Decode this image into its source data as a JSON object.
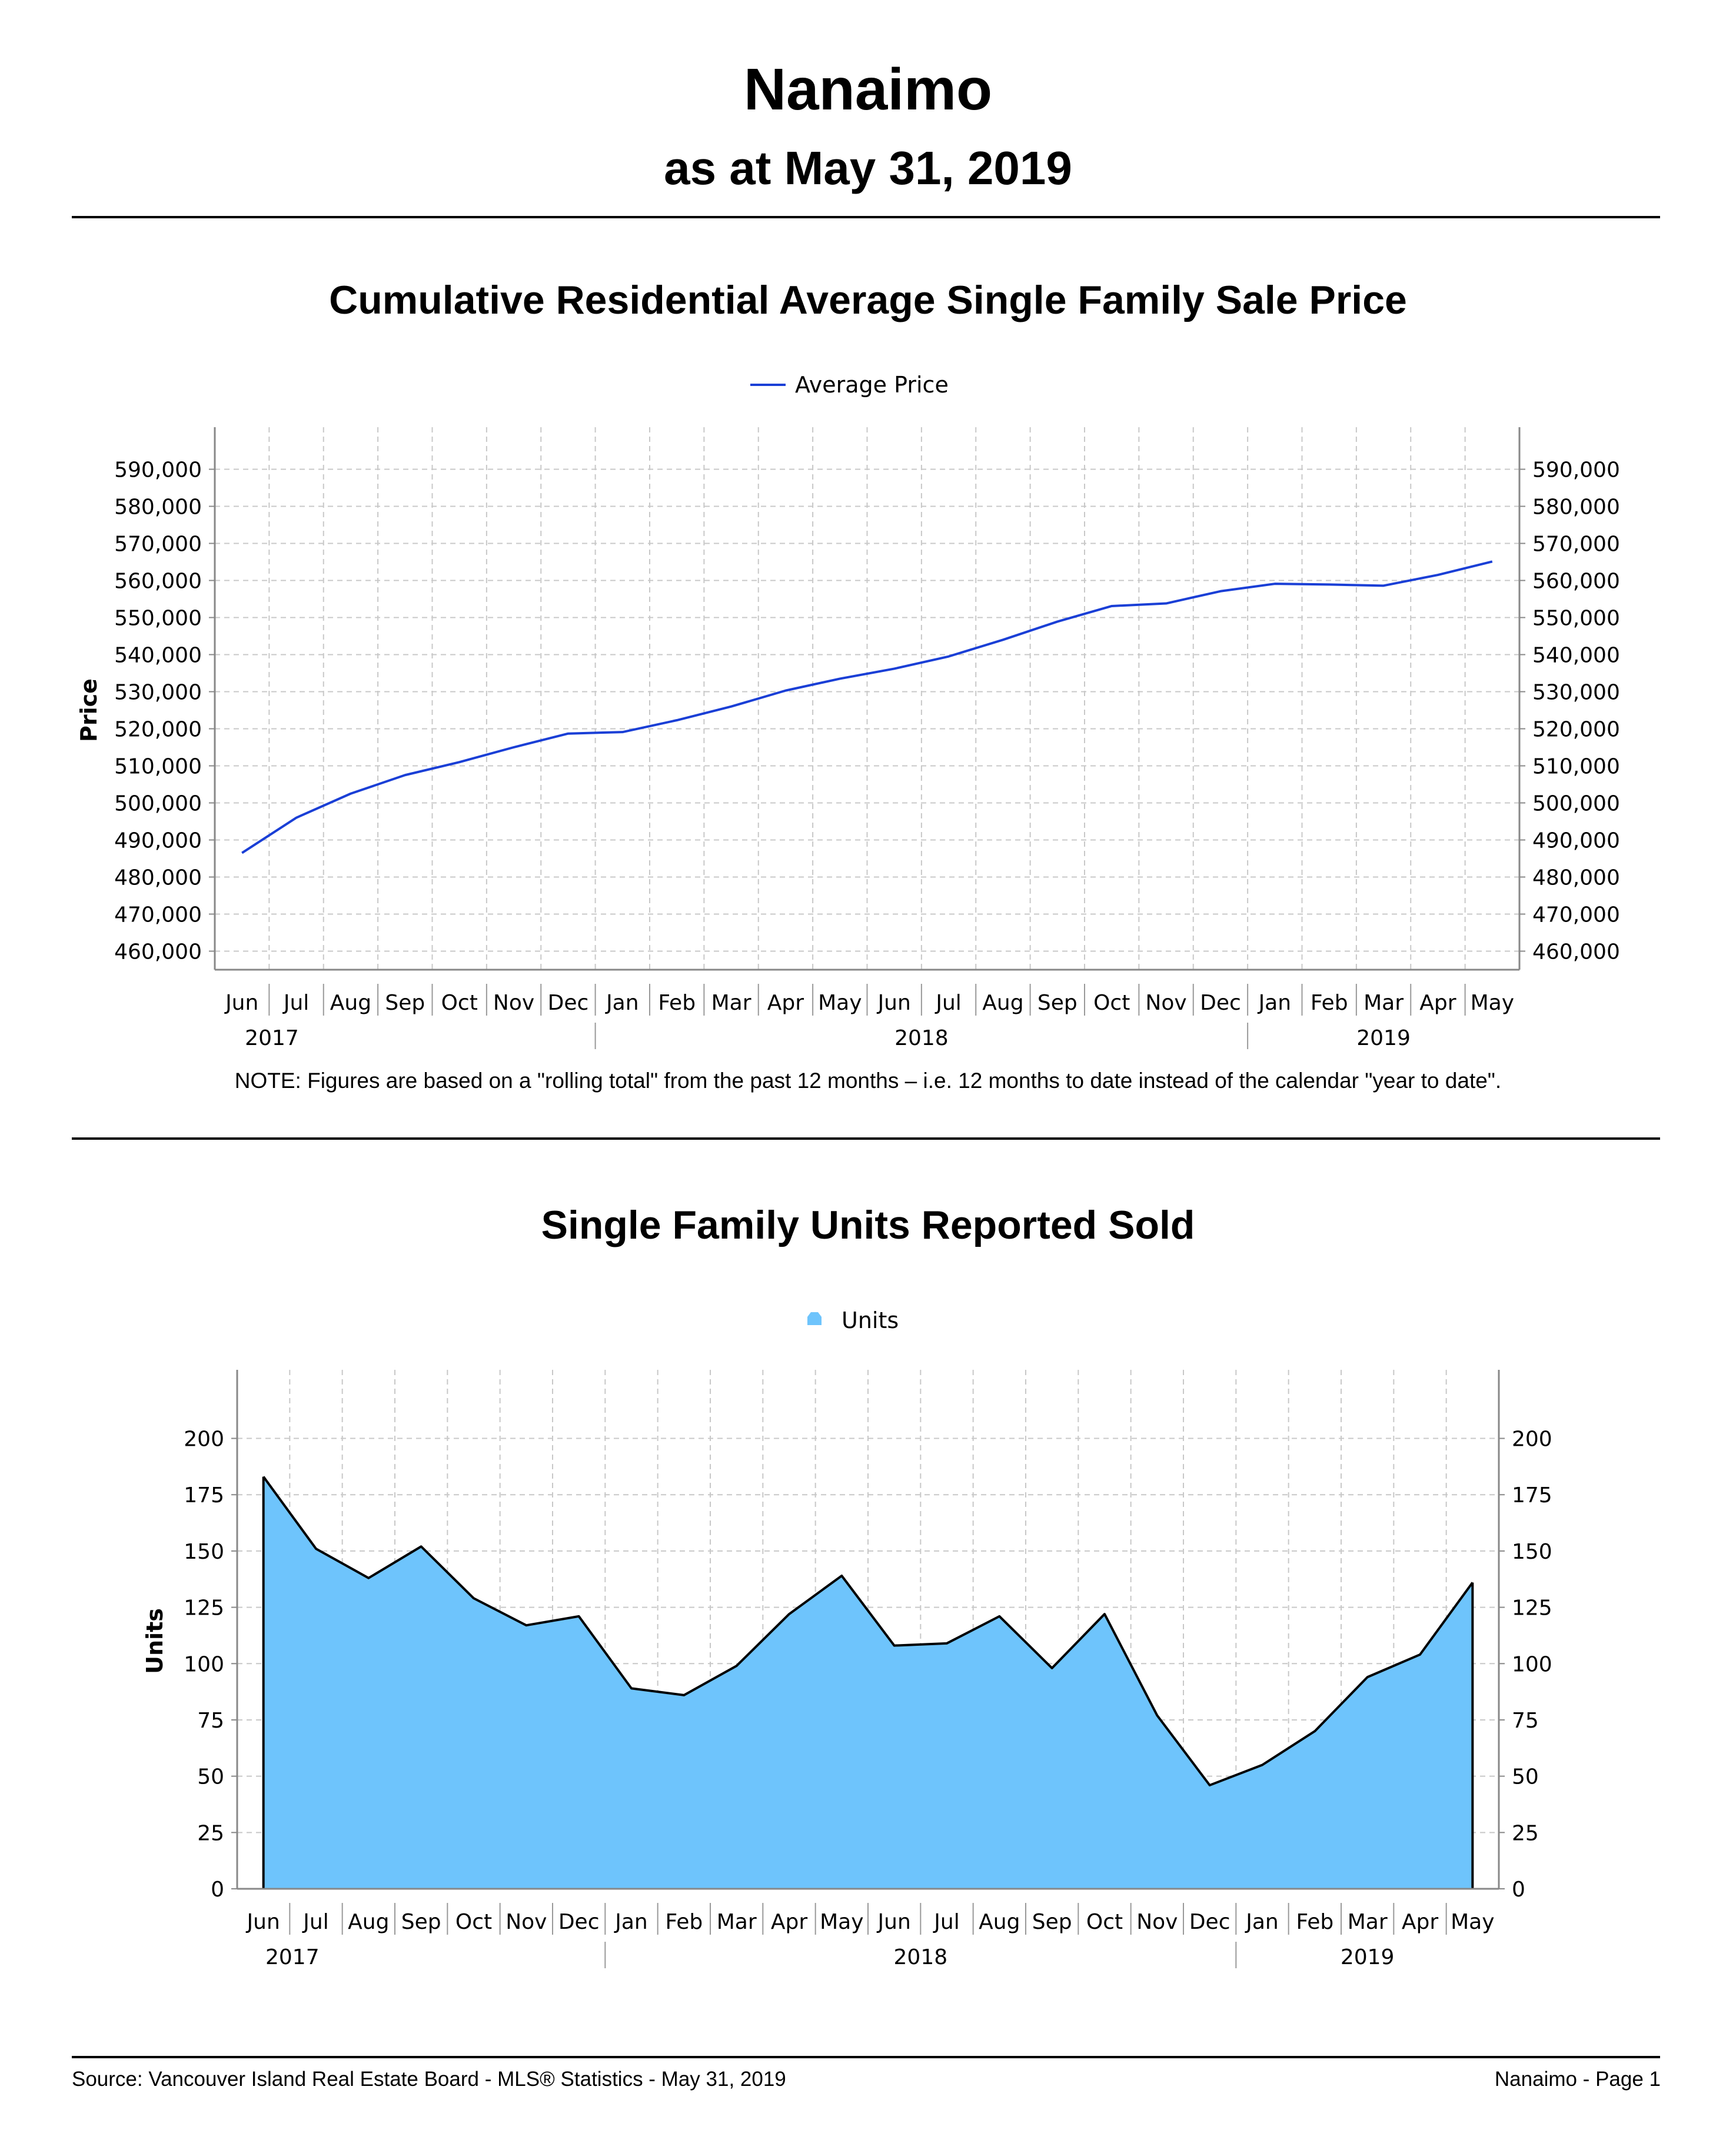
{
  "header": {
    "title": "Nanaimo",
    "subtitle": "as at May 31, 2019"
  },
  "note": "NOTE:  Figures are based on a \"rolling total\" from the past 12 months – i.e. 12 months to date instead of the calendar \"year to date\".",
  "footer": {
    "source": "Source: Vancouver Island Real Estate Board - MLS® Statistics - May 31, 2019",
    "page": "Nanaimo - Page 1"
  },
  "chart_data": [
    {
      "type": "line",
      "title": "Cumulative Residential Average Single Family Sale Price",
      "xlabel": "",
      "ylabel": "Price",
      "ylim": [
        455000,
        595000
      ],
      "yticks": [
        "460,000",
        "470,000",
        "480,000",
        "490,000",
        "500,000",
        "510,000",
        "520,000",
        "530,000",
        "540,000",
        "550,000",
        "560,000",
        "570,000",
        "580,000",
        "590,000"
      ],
      "ytick_values": [
        460000,
        470000,
        480000,
        490000,
        500000,
        510000,
        520000,
        530000,
        540000,
        550000,
        560000,
        570000,
        580000,
        590000
      ],
      "categories": [
        "Jun",
        "Jul",
        "Aug",
        "Sep",
        "Oct",
        "Nov",
        "Dec",
        "Jan",
        "Feb",
        "Mar",
        "Apr",
        "May",
        "Jun",
        "Jul",
        "Aug",
        "Sep",
        "Oct",
        "Nov",
        "Dec",
        "Jan",
        "Feb",
        "Mar",
        "Apr",
        "May"
      ],
      "year_groups": [
        {
          "label": "2017",
          "start": 0,
          "end": 6
        },
        {
          "label": "2018",
          "start": 7,
          "end": 18
        },
        {
          "label": "2019",
          "start": 19,
          "end": 23
        }
      ],
      "legend_position": "top-center",
      "grid": true,
      "series": [
        {
          "name": "Average Price",
          "color": "#1a3fd6",
          "values": [
            486500,
            496000,
            502500,
            507500,
            511000,
            515000,
            518700,
            519100,
            522300,
            526000,
            530300,
            533500,
            536200,
            539500,
            544000,
            548900,
            553100,
            553800,
            557100,
            559100,
            558900,
            558600,
            561500,
            565100
          ]
        }
      ]
    },
    {
      "type": "area",
      "title": "Single Family Units Reported Sold",
      "xlabel": "",
      "ylabel": "Units",
      "ylim": [
        0,
        220
      ],
      "yticks": [
        "0",
        "25",
        "50",
        "75",
        "100",
        "125",
        "150",
        "175",
        "200"
      ],
      "ytick_values": [
        0,
        25,
        50,
        75,
        100,
        125,
        150,
        175,
        200
      ],
      "categories": [
        "Jun",
        "Jul",
        "Aug",
        "Sep",
        "Oct",
        "Nov",
        "Dec",
        "Jan",
        "Feb",
        "Mar",
        "Apr",
        "May",
        "Jun",
        "Jul",
        "Aug",
        "Sep",
        "Oct",
        "Nov",
        "Dec",
        "Jan",
        "Feb",
        "Mar",
        "Apr",
        "May"
      ],
      "year_groups": [
        {
          "label": "2017",
          "start": 0,
          "end": 6
        },
        {
          "label": "2018",
          "start": 7,
          "end": 18
        },
        {
          "label": "2019",
          "start": 19,
          "end": 23
        }
      ],
      "legend_position": "top-center",
      "grid": true,
      "series": [
        {
          "name": "Units",
          "color": "#6ec4fc",
          "values": [
            183,
            151,
            138,
            152,
            129,
            117,
            121,
            89,
            86,
            99,
            122,
            139,
            108,
            109,
            121,
            98,
            122,
            77,
            46,
            55,
            70,
            94,
            104,
            136
          ]
        }
      ]
    }
  ]
}
